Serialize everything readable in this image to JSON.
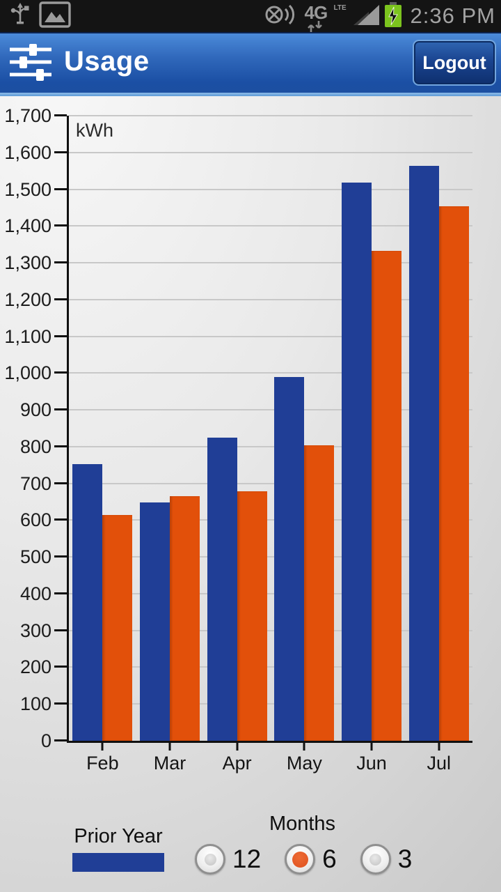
{
  "status_bar": {
    "time": "2:36 PM",
    "network": "4G",
    "network_sub": "LTE",
    "icons": [
      "usb",
      "gallery",
      "gps-signal",
      "data-arrows",
      "signal-strength",
      "battery-charging"
    ]
  },
  "header": {
    "title": "Usage",
    "logout_label": "Logout"
  },
  "chart_data": {
    "type": "bar",
    "title": "",
    "unit_label": "kWh",
    "categories": [
      "Feb",
      "Mar",
      "Apr",
      "May",
      "Jun",
      "Jul"
    ],
    "series": [
      {
        "name": "Prior Year",
        "color": "#203e96",
        "values": [
          753,
          648,
          824,
          990,
          1518,
          1563
        ]
      },
      {
        "name": "",
        "color": "#e2500a",
        "values": [
          614,
          666,
          678,
          803,
          1333,
          1454
        ]
      }
    ],
    "ylim": [
      0,
      1700
    ],
    "ytick_step": 100,
    "grid": true,
    "legend_position": "bottom-left"
  },
  "controls": {
    "legend": {
      "label": "Prior Year",
      "swatch_color": "#203e96"
    },
    "months": {
      "label": "Months",
      "options": [
        {
          "label": "12",
          "selected": false
        },
        {
          "label": "6",
          "selected": true
        },
        {
          "label": "3",
          "selected": false
        }
      ],
      "selected_dot_color": "#df5220"
    }
  }
}
